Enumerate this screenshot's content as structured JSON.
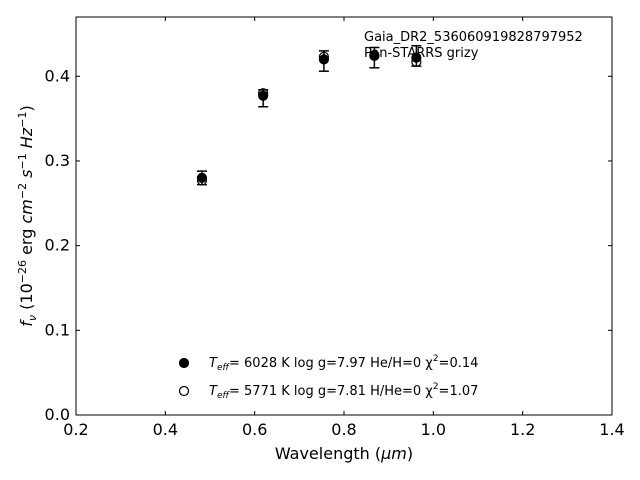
{
  "chart_data": {
    "type": "scatter",
    "title": "",
    "xlabel": "Wavelength (μm)",
    "ylabel": "f_ν (10^-26 erg cm^-2 s^-1 Hz^-1)",
    "xlim": [
      0.2,
      1.4
    ],
    "ylim": [
      0.0,
      0.47
    ],
    "xticks": [
      0.2,
      0.4,
      0.6,
      0.8,
      1.0,
      1.2,
      1.4
    ],
    "xtick_labels": [
      "0.2",
      "0.4",
      "0.6",
      "0.8",
      "1.0",
      "1.2",
      "1.4"
    ],
    "yticks": [
      0.0,
      0.1,
      0.2,
      0.3,
      0.4
    ],
    "ytick_labels": [
      "0.0",
      "0.1",
      "0.2",
      "0.3",
      "0.4"
    ],
    "grid": false,
    "legend_position": "bottom-center",
    "annotation": [
      "Gaia_DR2_536060919828797952",
      "Pan-STARRS grizy"
    ],
    "observed": {
      "x": [
        0.482,
        0.619,
        0.755,
        0.868,
        0.962
      ],
      "y": [
        0.28,
        0.374,
        0.418,
        0.422,
        0.424
      ],
      "yerr": [
        0.008,
        0.01,
        0.012,
        0.012,
        0.012
      ]
    },
    "series": [
      {
        "name": "T_eff= 6028 K log g=7.97 He/H=0 χ²=0.14",
        "marker": "filled-circle",
        "color": "#000000",
        "x": [
          0.482,
          0.619,
          0.755,
          0.868,
          0.962
        ],
        "y": [
          0.28,
          0.377,
          0.42,
          0.425,
          0.422
        ]
      },
      {
        "name": "T_eff= 5771 K log g=7.81 H/He=0 χ²=1.07",
        "marker": "open-circle",
        "color": "#000000",
        "x": [
          0.482,
          0.619,
          0.755,
          0.868,
          0.962
        ],
        "y": [
          0.277,
          0.38,
          0.423,
          0.424,
          0.417
        ]
      }
    ]
  },
  "legend": {
    "entry1": {
      "teff_label": "T",
      "teff_sub": "eff",
      "text": "=  6028 K  log g=7.97  He/H=0  χ",
      "chi_sup": "2",
      "chi_value": "=0.14"
    },
    "entry2": {
      "teff_label": "T",
      "teff_sub": "eff",
      "text": "=  5771 K  log g=7.81  H/He=0  χ",
      "chi_sup": "2",
      "chi_value": "=1.07"
    }
  },
  "axis_text": {
    "x_main": "Wavelength (",
    "x_unit": "μm",
    "x_close": ")",
    "y_f": "f",
    "y_nu": "ν",
    "y_open": " (10",
    "y_exp1": "−26",
    "y_erg": " erg ",
    "y_cm": "cm",
    "y_exp2": "−2",
    "y_s": " s",
    "y_exp3": "−1",
    "y_hz": " Hz",
    "y_exp4": "−1",
    "y_close": ")"
  }
}
